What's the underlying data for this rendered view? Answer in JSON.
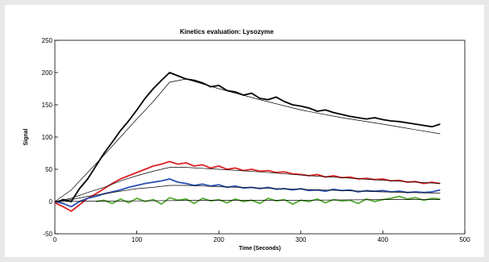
{
  "chart_data": {
    "type": "line",
    "title": "Kinetics evaluation: Lysozyme",
    "xlabel": "Time (Seconds)",
    "ylabel": "Signal",
    "xlim": [
      0,
      500
    ],
    "ylim": [
      -50,
      250
    ],
    "xticks": [
      0,
      100,
      200,
      300,
      400,
      500
    ],
    "yticks": [
      -50,
      0,
      50,
      100,
      150,
      200,
      250
    ],
    "grid": false,
    "legend": "none",
    "series": [
      {
        "color": "#000000",
        "role": "measured",
        "x": [
          0,
          10,
          20,
          30,
          40,
          50,
          60,
          70,
          80,
          90,
          100,
          110,
          120,
          130,
          140,
          150,
          160,
          170,
          180,
          190,
          200,
          210,
          220,
          230,
          240,
          250,
          260,
          270,
          280,
          290,
          300,
          310,
          320,
          330,
          340,
          350,
          360,
          370,
          380,
          390,
          400,
          410,
          420,
          430,
          440,
          450,
          460,
          470
        ],
        "y": [
          -2,
          3,
          0,
          20,
          35,
          55,
          75,
          92,
          110,
          125,
          142,
          160,
          175,
          188,
          200,
          195,
          190,
          188,
          184,
          178,
          180,
          172,
          170,
          165,
          168,
          160,
          158,
          162,
          155,
          150,
          148,
          145,
          140,
          142,
          138,
          135,
          132,
          130,
          128,
          130,
          127,
          125,
          124,
          122,
          120,
          118,
          116,
          120
        ]
      },
      {
        "color": "#dd2222",
        "role": "measured",
        "x": [
          0,
          10,
          20,
          30,
          40,
          50,
          60,
          70,
          80,
          90,
          100,
          110,
          120,
          130,
          140,
          150,
          160,
          170,
          180,
          190,
          200,
          210,
          220,
          230,
          240,
          250,
          260,
          270,
          280,
          290,
          300,
          310,
          320,
          330,
          340,
          350,
          360,
          370,
          380,
          390,
          400,
          410,
          420,
          430,
          440,
          450,
          460,
          470
        ],
        "y": [
          -2,
          -8,
          -15,
          -5,
          5,
          12,
          20,
          28,
          35,
          40,
          45,
          50,
          55,
          58,
          62,
          58,
          60,
          55,
          57,
          52,
          55,
          50,
          52,
          48,
          50,
          47,
          48,
          45,
          46,
          43,
          42,
          40,
          42,
          38,
          40,
          37,
          38,
          35,
          36,
          34,
          35,
          32,
          33,
          30,
          31,
          28,
          30,
          28
        ]
      },
      {
        "color": "#2a4fb0",
        "role": "measured",
        "x": [
          0,
          10,
          20,
          30,
          40,
          50,
          60,
          70,
          80,
          90,
          100,
          110,
          120,
          130,
          140,
          150,
          160,
          170,
          180,
          190,
          200,
          210,
          220,
          230,
          240,
          250,
          260,
          270,
          280,
          290,
          300,
          310,
          320,
          330,
          340,
          350,
          360,
          370,
          380,
          390,
          400,
          410,
          420,
          430,
          440,
          450,
          460,
          470
        ],
        "y": [
          0,
          -3,
          -8,
          0,
          5,
          8,
          12,
          15,
          18,
          22,
          25,
          28,
          30,
          32,
          35,
          30,
          28,
          25,
          27,
          24,
          26,
          22,
          24,
          21,
          22,
          20,
          22,
          19,
          20,
          18,
          20,
          17,
          18,
          16,
          19,
          17,
          18,
          15,
          17,
          16,
          17,
          15,
          16,
          14,
          15,
          14,
          15,
          18
        ]
      },
      {
        "color": "#55aa33",
        "role": "measured",
        "x": [
          50,
          60,
          70,
          80,
          90,
          100,
          110,
          120,
          130,
          140,
          150,
          160,
          170,
          180,
          190,
          200,
          210,
          220,
          230,
          240,
          250,
          260,
          270,
          280,
          290,
          300,
          310,
          320,
          330,
          340,
          350,
          360,
          370,
          380,
          390,
          400,
          410,
          420,
          430,
          440,
          450,
          460,
          470
        ],
        "y": [
          0,
          2,
          -3,
          4,
          -2,
          5,
          0,
          3,
          -4,
          6,
          2,
          4,
          -3,
          5,
          1,
          3,
          -2,
          4,
          0,
          2,
          -3,
          5,
          1,
          3,
          -4,
          2,
          0,
          4,
          -2,
          3,
          1,
          2,
          -3,
          4,
          0,
          3,
          5,
          8,
          4,
          6,
          2,
          5,
          4
        ]
      },
      {
        "color": "#000000",
        "role": "fit",
        "x": [
          0,
          20,
          40,
          60,
          80,
          100,
          120,
          140,
          160,
          200,
          250,
          300,
          350,
          400,
          470
        ],
        "y": [
          0,
          18,
          45,
          72,
          100,
          128,
          155,
          185,
          190,
          175,
          158,
          142,
          130,
          120,
          105
        ]
      },
      {
        "color": "#000000",
        "role": "fit",
        "x": [
          0,
          20,
          40,
          60,
          80,
          100,
          120,
          140,
          160,
          200,
          250,
          300,
          350,
          400,
          470
        ],
        "y": [
          0,
          5,
          14,
          22,
          32,
          40,
          47,
          53,
          53,
          50,
          46,
          41,
          37,
          33,
          28
        ]
      },
      {
        "color": "#000000",
        "role": "fit",
        "x": [
          0,
          20,
          40,
          60,
          80,
          100,
          120,
          140,
          160,
          200,
          250,
          300,
          350,
          400,
          470
        ],
        "y": [
          0,
          3,
          8,
          12,
          16,
          20,
          22,
          25,
          25,
          23,
          21,
          19,
          17,
          15,
          13
        ]
      },
      {
        "color": "#000000",
        "role": "fit",
        "x": [
          0,
          100,
          200,
          300,
          400,
          470
        ],
        "y": [
          0,
          1,
          2,
          2,
          3,
          3
        ]
      }
    ]
  }
}
